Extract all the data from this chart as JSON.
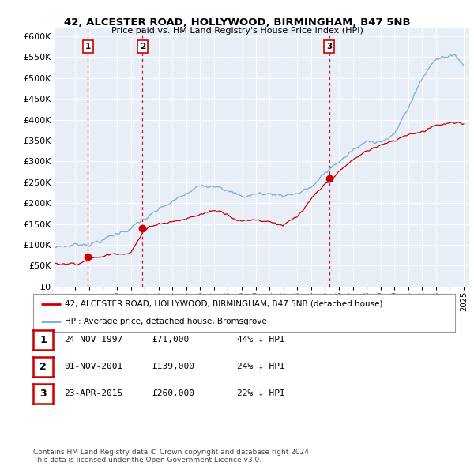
{
  "title": "42, ALCESTER ROAD, HOLLYWOOD, BIRMINGHAM, B47 5NB",
  "subtitle": "Price paid vs. HM Land Registry's House Price Index (HPI)",
  "background_color": "#ffffff",
  "plot_bg_color": "#e8eef8",
  "grid_color": "#ffffff",
  "sale_dates_decimal": [
    1997.9,
    2001.84,
    2015.31
  ],
  "sale_prices": [
    71000,
    139000,
    260000
  ],
  "sale_labels": [
    "1",
    "2",
    "3"
  ],
  "table_data": [
    [
      "1",
      "24-NOV-1997",
      "£71,000",
      "44% ↓ HPI"
    ],
    [
      "2",
      "01-NOV-2001",
      "£139,000",
      "24% ↓ HPI"
    ],
    [
      "3",
      "23-APR-2015",
      "£260,000",
      "22% ↓ HPI"
    ]
  ],
  "legend_property_label": "42, ALCESTER ROAD, HOLLYWOOD, BIRMINGHAM, B47 5NB (detached house)",
  "legend_hpi_label": "HPI: Average price, detached house, Bromsgrove",
  "footer_text": "Contains HM Land Registry data © Crown copyright and database right 2024.\nThis data is licensed under the Open Government Licence v3.0.",
  "property_color": "#cc0000",
  "hpi_color": "#7aaed6",
  "vline_color": "#cc0000",
  "ylim": [
    0,
    620000
  ],
  "yticks": [
    0,
    50000,
    100000,
    150000,
    200000,
    250000,
    300000,
    350000,
    400000,
    450000,
    500000,
    550000,
    600000
  ],
  "xlim_start": 1995.5,
  "xlim_end": 2025.4
}
